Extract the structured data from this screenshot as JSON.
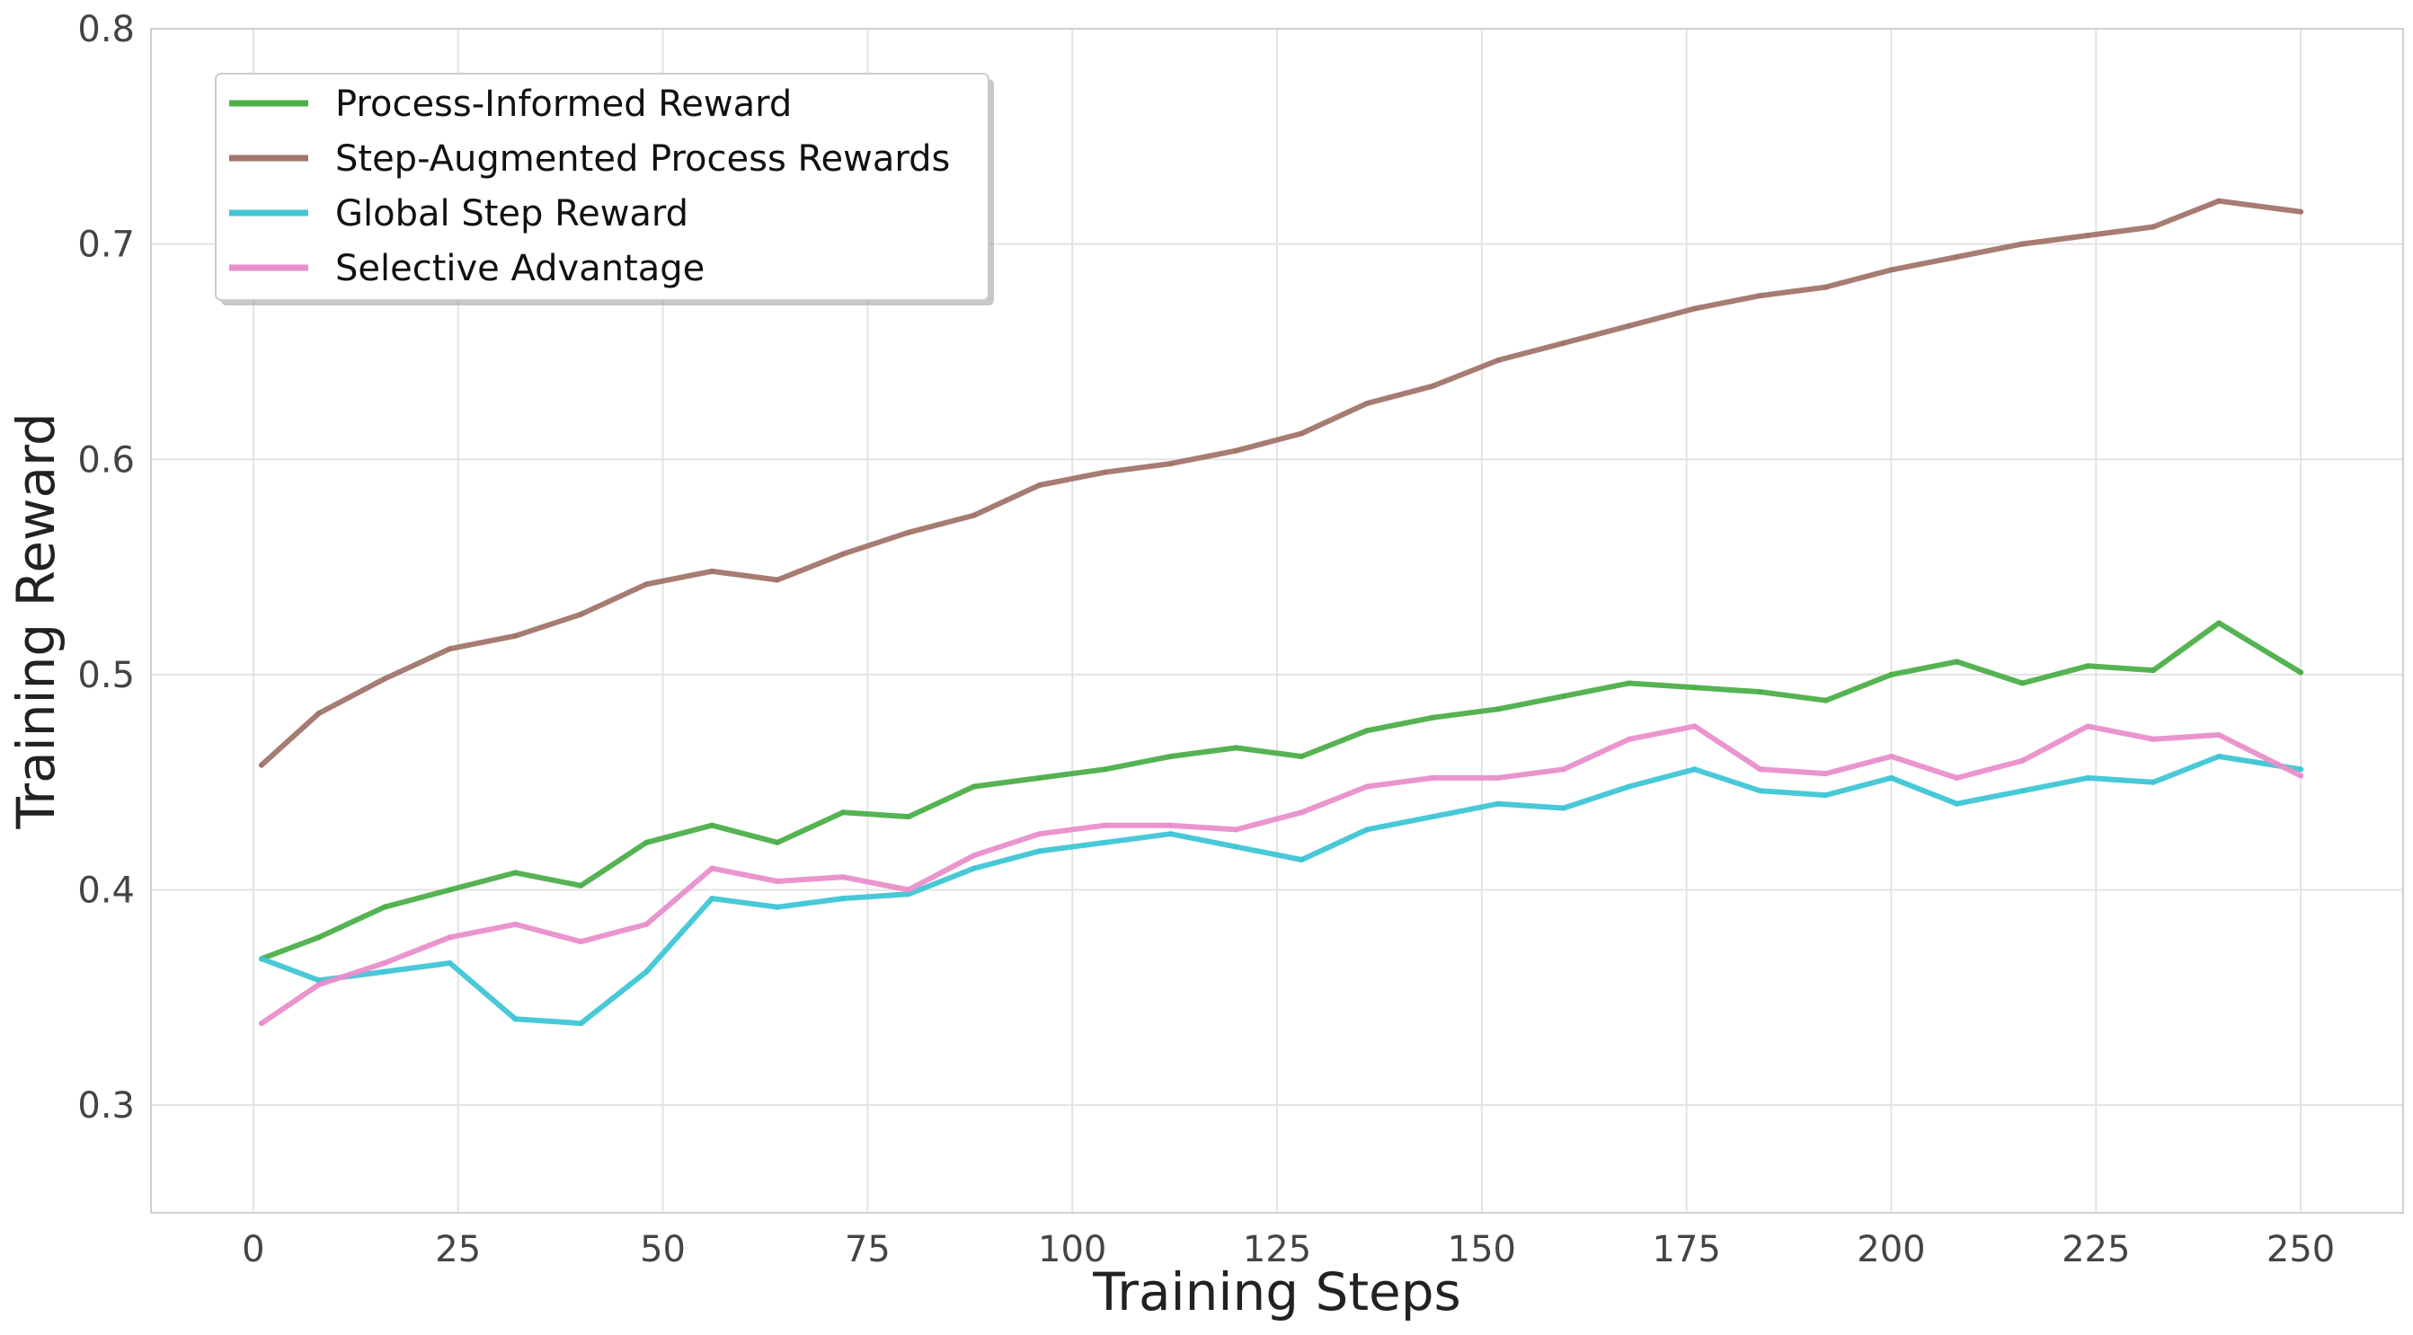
{
  "chart_data": {
    "type": "line",
    "title": "",
    "xlabel": "Training Steps",
    "ylabel": "Training Reward",
    "xlim": [
      -12.5,
      262.5
    ],
    "ylim": [
      0.25,
      0.8
    ],
    "xticks": [
      0,
      25,
      50,
      75,
      100,
      125,
      150,
      175,
      200,
      225,
      250
    ],
    "yticks": [
      0.3,
      0.4,
      0.5,
      0.6,
      0.7,
      0.8
    ],
    "xtick_labels": [
      "0",
      "25",
      "50",
      "75",
      "100",
      "125",
      "150",
      "175",
      "200",
      "225",
      "250"
    ],
    "ytick_labels": [
      "0.3",
      "0.4",
      "0.5",
      "0.6",
      "0.7",
      "0.8"
    ],
    "grid": true,
    "legend_position": "top-left",
    "x": [
      1,
      8,
      16,
      24,
      32,
      40,
      48,
      56,
      64,
      72,
      80,
      88,
      96,
      104,
      112,
      120,
      128,
      136,
      144,
      152,
      160,
      168,
      176,
      184,
      192,
      200,
      208,
      216,
      224,
      232,
      240,
      250
    ],
    "series": [
      {
        "name": "Process-Informed Reward",
        "color": "#4daf4a",
        "values": [
          0.368,
          0.378,
          0.392,
          0.4,
          0.408,
          0.402,
          0.422,
          0.43,
          0.422,
          0.436,
          0.434,
          0.448,
          0.452,
          0.456,
          0.462,
          0.466,
          0.462,
          0.474,
          0.48,
          0.484,
          0.49,
          0.496,
          0.494,
          0.492,
          0.488,
          0.5,
          0.506,
          0.496,
          0.504,
          0.502,
          0.524,
          0.501
        ]
      },
      {
        "name": "Step-Augmented Process Rewards",
        "color": "#a1756b",
        "values": [
          0.458,
          0.482,
          0.498,
          0.512,
          0.518,
          0.528,
          0.542,
          0.548,
          0.544,
          0.556,
          0.566,
          0.574,
          0.588,
          0.594,
          0.598,
          0.604,
          0.612,
          0.626,
          0.634,
          0.646,
          0.654,
          0.662,
          0.67,
          0.676,
          0.68,
          0.688,
          0.694,
          0.7,
          0.704,
          0.708,
          0.72,
          0.715
        ]
      },
      {
        "name": "Global Step Reward",
        "color": "#3fc6d6",
        "values": [
          0.368,
          0.358,
          0.362,
          0.366,
          0.34,
          0.338,
          0.362,
          0.396,
          0.392,
          0.396,
          0.398,
          0.41,
          0.418,
          0.422,
          0.426,
          0.42,
          0.414,
          0.428,
          0.434,
          0.44,
          0.438,
          0.448,
          0.456,
          0.446,
          0.444,
          0.452,
          0.44,
          0.446,
          0.452,
          0.45,
          0.462,
          0.456
        ]
      },
      {
        "name": "Selective Advantage",
        "color": "#e98fcb",
        "values": [
          0.338,
          0.356,
          0.366,
          0.378,
          0.384,
          0.376,
          0.384,
          0.41,
          0.404,
          0.406,
          0.4,
          0.416,
          0.426,
          0.43,
          0.43,
          0.428,
          0.436,
          0.448,
          0.452,
          0.452,
          0.456,
          0.47,
          0.476,
          0.456,
          0.454,
          0.462,
          0.452,
          0.46,
          0.476,
          0.47,
          0.472,
          0.453
        ]
      }
    ]
  }
}
